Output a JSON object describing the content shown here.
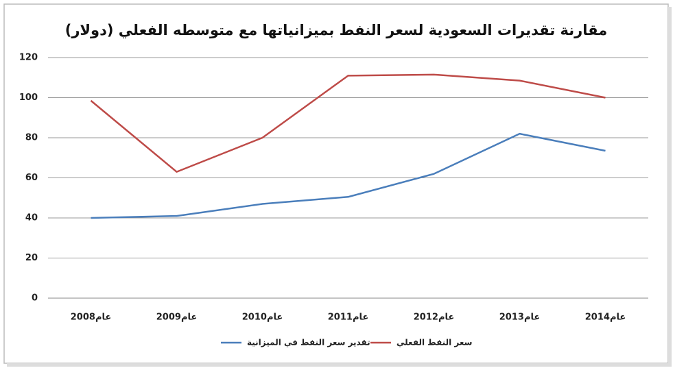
{
  "chart_data": {
    "type": "line",
    "title": "مقارنة تقديرات السعودية لسعر النفط بميزانياتها  مع متوسطه الفعلي (دولار)",
    "categories": [
      "عام2008",
      "عام2009",
      "عام2010",
      "عام2011",
      "عام2012",
      "عام2013",
      "عام2014"
    ],
    "series": [
      {
        "name": "تقدير سعر النفط في الميزانية",
        "color": "#4a7ebb",
        "values": [
          40,
          41,
          47,
          50.5,
          62,
          82,
          73.5
        ]
      },
      {
        "name": "سعر النفط الفعلي",
        "color": "#be4b48",
        "values": [
          98.5,
          63,
          80,
          111,
          111.5,
          108.5,
          100
        ]
      }
    ],
    "ylim": [
      0,
      120
    ],
    "yticks": [
      0,
      20,
      40,
      60,
      80,
      100,
      120
    ],
    "grid": true
  }
}
